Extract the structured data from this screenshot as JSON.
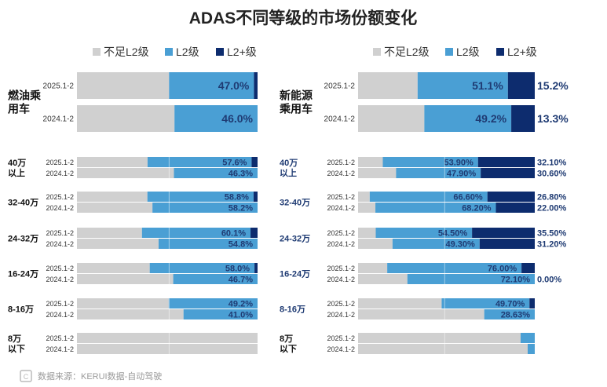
{
  "title": "ADAS不同等级的市场份额变化",
  "source": "数据来源：KERUI数据-自动驾驶",
  "colors": {
    "below_l2": "#d0d0d0",
    "l2": "#4a9fd4",
    "l2_plus": "#0d2c6e",
    "label_dark": "#1f3b73",
    "text": "#222222"
  },
  "legend": [
    "不足L2级",
    "L2级",
    "L2+级"
  ],
  "chart_data": [
    {
      "type": "bar",
      "stacked": true,
      "orientation": "horizontal",
      "normalized": "100%",
      "panel": "燃油乘用车",
      "series_names": [
        "不足L2级",
        "L2级",
        "L2+级"
      ],
      "groups": [
        {
          "label": "燃油乘用车",
          "rows": [
            {
              "period": "2025.1-2",
              "below_l2": 51.0,
              "l2": 47.0,
              "l2_plus": 2.0,
              "l2_label": "47.0%",
              "l2p_label": ""
            },
            {
              "period": "2024.1-2",
              "below_l2": 54.0,
              "l2": 46.0,
              "l2_plus": 0.0,
              "l2_label": "46.0%",
              "l2p_label": ""
            }
          ]
        },
        {
          "label": "40万以上",
          "rows": [
            {
              "period": "2025.1-2",
              "below_l2": 39.1,
              "l2": 57.6,
              "l2_plus": 3.3,
              "l2_label": "57.6%",
              "l2p_label": ""
            },
            {
              "period": "2024.1-2",
              "below_l2": 53.7,
              "l2": 46.3,
              "l2_plus": 0.0,
              "l2_label": "46.3%",
              "l2p_label": ""
            }
          ]
        },
        {
          "label": "32-40万",
          "rows": [
            {
              "period": "2025.1-2",
              "below_l2": 39.0,
              "l2": 58.8,
              "l2_plus": 2.2,
              "l2_label": "58.8%",
              "l2p_label": ""
            },
            {
              "period": "2024.1-2",
              "below_l2": 41.8,
              "l2": 58.2,
              "l2_plus": 0.0,
              "l2_label": "58.2%",
              "l2p_label": ""
            }
          ]
        },
        {
          "label": "24-32万",
          "rows": [
            {
              "period": "2025.1-2",
              "below_l2": 36.0,
              "l2": 60.1,
              "l2_plus": 3.9,
              "l2_label": "60.1%",
              "l2p_label": ""
            },
            {
              "period": "2024.1-2",
              "below_l2": 45.2,
              "l2": 54.8,
              "l2_plus": 0.0,
              "l2_label": "54.8%",
              "l2p_label": ""
            }
          ]
        },
        {
          "label": "16-24万",
          "rows": [
            {
              "period": "2025.1-2",
              "below_l2": 40.3,
              "l2": 58.0,
              "l2_plus": 1.7,
              "l2_label": "58.0%",
              "l2p_label": ""
            },
            {
              "period": "2024.1-2",
              "below_l2": 53.3,
              "l2": 46.7,
              "l2_plus": 0.0,
              "l2_label": "46.7%",
              "l2p_label": ""
            }
          ]
        },
        {
          "label": "8-16万",
          "rows": [
            {
              "period": "2025.1-2",
              "below_l2": 50.8,
              "l2": 49.2,
              "l2_plus": 0.0,
              "l2_label": "49.2%",
              "l2p_label": ""
            },
            {
              "period": "2024.1-2",
              "below_l2": 59.0,
              "l2": 41.0,
              "l2_plus": 0.0,
              "l2_label": "41.0%",
              "l2p_label": ""
            }
          ]
        },
        {
          "label": "8万以下",
          "rows": [
            {
              "period": "2025.1-2",
              "below_l2": 100.0,
              "l2": 0.0,
              "l2_plus": 0.0,
              "l2_label": "",
              "l2p_label": ""
            },
            {
              "period": "2024.1-2",
              "below_l2": 100.0,
              "l2": 0.0,
              "l2_plus": 0.0,
              "l2_label": "",
              "l2p_label": ""
            }
          ]
        }
      ]
    },
    {
      "type": "bar",
      "stacked": true,
      "orientation": "horizontal",
      "normalized": "100%",
      "panel": "新能源乘用车",
      "series_names": [
        "不足L2级",
        "L2级",
        "L2+级"
      ],
      "groups": [
        {
          "label": "新能源乘用车",
          "rows": [
            {
              "period": "2025.1-2",
              "below_l2": 33.7,
              "l2": 51.1,
              "l2_plus": 15.2,
              "l2_label": "51.1%",
              "l2p_label": "15.2%"
            },
            {
              "period": "2024.1-2",
              "below_l2": 37.5,
              "l2": 49.2,
              "l2_plus": 13.3,
              "l2_label": "49.2%",
              "l2p_label": "13.3%"
            }
          ]
        },
        {
          "label": "40万以上",
          "rows": [
            {
              "period": "2025.1-2",
              "below_l2": 14.0,
              "l2": 53.9,
              "l2_plus": 32.1,
              "l2_label": "53.90%",
              "l2p_label": "32.10%"
            },
            {
              "period": "2024.1-2",
              "below_l2": 21.5,
              "l2": 47.9,
              "l2_plus": 30.6,
              "l2_label": "47.90%",
              "l2p_label": "30.60%"
            }
          ]
        },
        {
          "label": "32-40万",
          "rows": [
            {
              "period": "2025.1-2",
              "below_l2": 6.6,
              "l2": 66.6,
              "l2_plus": 26.8,
              "l2_label": "66.60%",
              "l2p_label": "26.80%"
            },
            {
              "period": "2024.1-2",
              "below_l2": 9.8,
              "l2": 68.2,
              "l2_plus": 22.0,
              "l2_label": "68.20%",
              "l2p_label": "22.00%"
            }
          ]
        },
        {
          "label": "24-32万",
          "rows": [
            {
              "period": "2025.1-2",
              "below_l2": 10.0,
              "l2": 54.5,
              "l2_plus": 35.5,
              "l2_label": "54.50%",
              "l2p_label": "35.50%"
            },
            {
              "period": "2024.1-2",
              "below_l2": 19.5,
              "l2": 49.3,
              "l2_plus": 31.2,
              "l2_label": "49.30%",
              "l2p_label": "31.20%"
            }
          ]
        },
        {
          "label": "16-24万",
          "rows": [
            {
              "period": "2025.1-2",
              "below_l2": 16.5,
              "l2": 76.0,
              "l2_plus": 7.5,
              "l2_label": "76.00%",
              "l2p_label": ""
            },
            {
              "period": "2024.1-2",
              "below_l2": 27.9,
              "l2": 72.1,
              "l2_plus": 0.0,
              "l2_label": "72.10%",
              "l2p_label": "0.00%"
            }
          ]
        },
        {
          "label": "8-16万",
          "rows": [
            {
              "period": "2025.1-2",
              "below_l2": 47.3,
              "l2": 49.7,
              "l2_plus": 3.0,
              "l2_label": "49.70%",
              "l2p_label": ""
            },
            {
              "period": "2024.1-2",
              "below_l2": 71.4,
              "l2": 28.6,
              "l2_plus": 0.0,
              "l2_label": "28.63%",
              "l2p_label": ""
            }
          ]
        },
        {
          "label": "8万以下",
          "rows": [
            {
              "period": "2025.1-2",
              "below_l2": 92.0,
              "l2": 8.0,
              "l2_plus": 0.0,
              "l2_label": "",
              "l2p_label": ""
            },
            {
              "period": "2024.1-2",
              "below_l2": 96.0,
              "l2": 4.0,
              "l2_plus": 0.0,
              "l2_label": "",
              "l2p_label": ""
            }
          ]
        }
      ]
    }
  ]
}
